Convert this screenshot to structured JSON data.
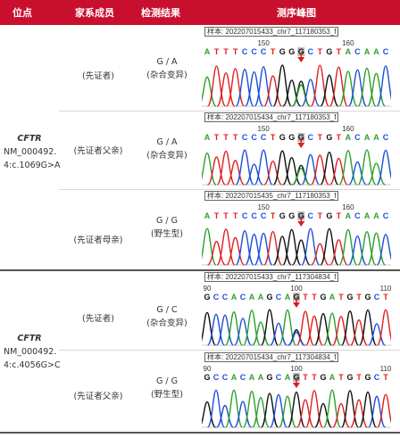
{
  "header": {
    "col_locus": "位点",
    "col_member": "家系成员",
    "col_result": "检测结果",
    "col_chromatogram": "测序峰图"
  },
  "groups": [
    {
      "gene": "CFTR",
      "transcript": "NM_000492.",
      "variant": "4:c.1069G>A",
      "rows": [
        {
          "member": "(先证者)",
          "genotype": "G / A",
          "type": "(杂合变异)",
          "sample": "样本: 202207015433_chr7_117180353_f",
          "tick_left": "150",
          "tick_right": "160",
          "bases": "ATTTCCCTGGGCTGTACAAC"
        },
        {
          "member": "(先证者父亲)",
          "genotype": "G / A",
          "type": "(杂合变异)",
          "sample": "样本: 202207015434_chr7_117180353_f",
          "tick_left": "150",
          "tick_right": "160",
          "bases": "ATTTCCCTGGGCTGTACAAC"
        },
        {
          "member": "(先证者母亲)",
          "genotype": "G / G",
          "type": "(野生型)",
          "sample": "样本: 202207015435_chr7_117180353_f",
          "tick_left": "150",
          "tick_right": "160",
          "bases": "ATTTCCCTGGGCTGTACAAC"
        }
      ]
    },
    {
      "gene": "CFTR",
      "transcript": "NM_000492.",
      "variant": "4:c.4056G>C",
      "rows": [
        {
          "member": "(先证者)",
          "genotype": "G / C",
          "type": "(杂合变异)",
          "sample": "样本: 202207015433_chr7_117304834_f",
          "tick_left": "90",
          "tick_mid": "100",
          "tick_right": "110",
          "bases": "GCCACAAGCAGTTGATGTGCT"
        },
        {
          "member": "(先证者父亲)",
          "genotype": "G / G",
          "type": "(野生型)",
          "sample": "样本: 202207015434_chr7_117304834_f",
          "tick_left": "90",
          "tick_mid": "100",
          "tick_right": "110",
          "bases": "GCCACAAGCAGTTGATGTGCT"
        }
      ]
    }
  ],
  "colors": {
    "header": "#c8102e",
    "A": "#2ca02c",
    "C": "#1f4fd8",
    "G": "#111111",
    "T": "#e02020",
    "arrow": "#d62020"
  }
}
